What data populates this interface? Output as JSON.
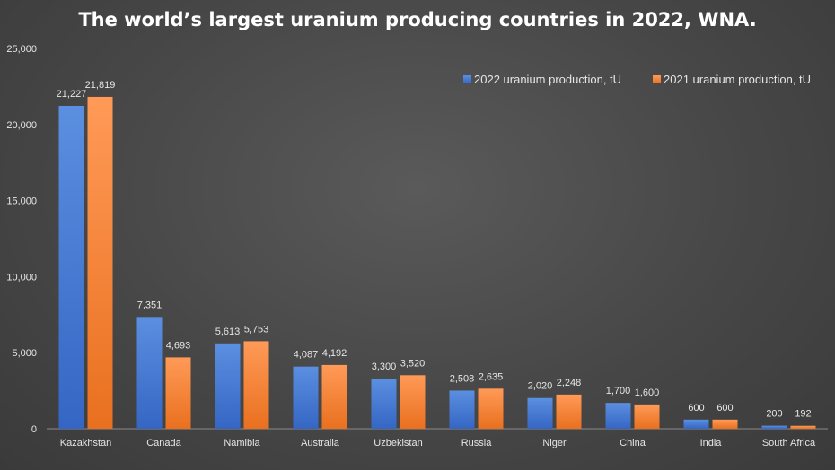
{
  "chart_data": {
    "type": "bar",
    "title": "The world’s largest uranium producing countries in 2022, WNA.",
    "xlabel": "",
    "ylabel": "",
    "ylim": [
      0,
      25000
    ],
    "yticks": [
      0,
      5000,
      10000,
      15000,
      20000,
      25000
    ],
    "ytick_labels": [
      "0",
      "5,000",
      "10,000",
      "15,000",
      "20,000",
      "25,000"
    ],
    "categories": [
      "Kazakhstan",
      "Canada",
      "Namibia",
      "Australia",
      "Uzbekistan",
      "Russia",
      "Niger",
      "China",
      "India",
      "South Africa"
    ],
    "series": [
      {
        "name": "2022 uranium production, tU",
        "color_top": "#5b8fe0",
        "color_bottom": "#3566c4",
        "values": [
          21227,
          7351,
          5613,
          4087,
          3300,
          2508,
          2020,
          1700,
          600,
          200
        ],
        "labels": [
          "21,227",
          "7,351",
          "5,613",
          "4,087",
          "3,300",
          "2,508",
          "2,020",
          "1,700",
          "600",
          "200"
        ]
      },
      {
        "name": "2021 uranium production, tU",
        "color_top": "#ff9a57",
        "color_bottom": "#e9701f",
        "values": [
          21819,
          4693,
          5753,
          4192,
          3520,
          2635,
          2248,
          1600,
          600,
          192
        ],
        "labels": [
          "21,819",
          "4,693",
          "5,753",
          "4,192",
          "3,520",
          "2,635",
          "2,248",
          "1,600",
          "600",
          "192"
        ]
      }
    ],
    "legend_position": "top-right",
    "grid": false
  }
}
